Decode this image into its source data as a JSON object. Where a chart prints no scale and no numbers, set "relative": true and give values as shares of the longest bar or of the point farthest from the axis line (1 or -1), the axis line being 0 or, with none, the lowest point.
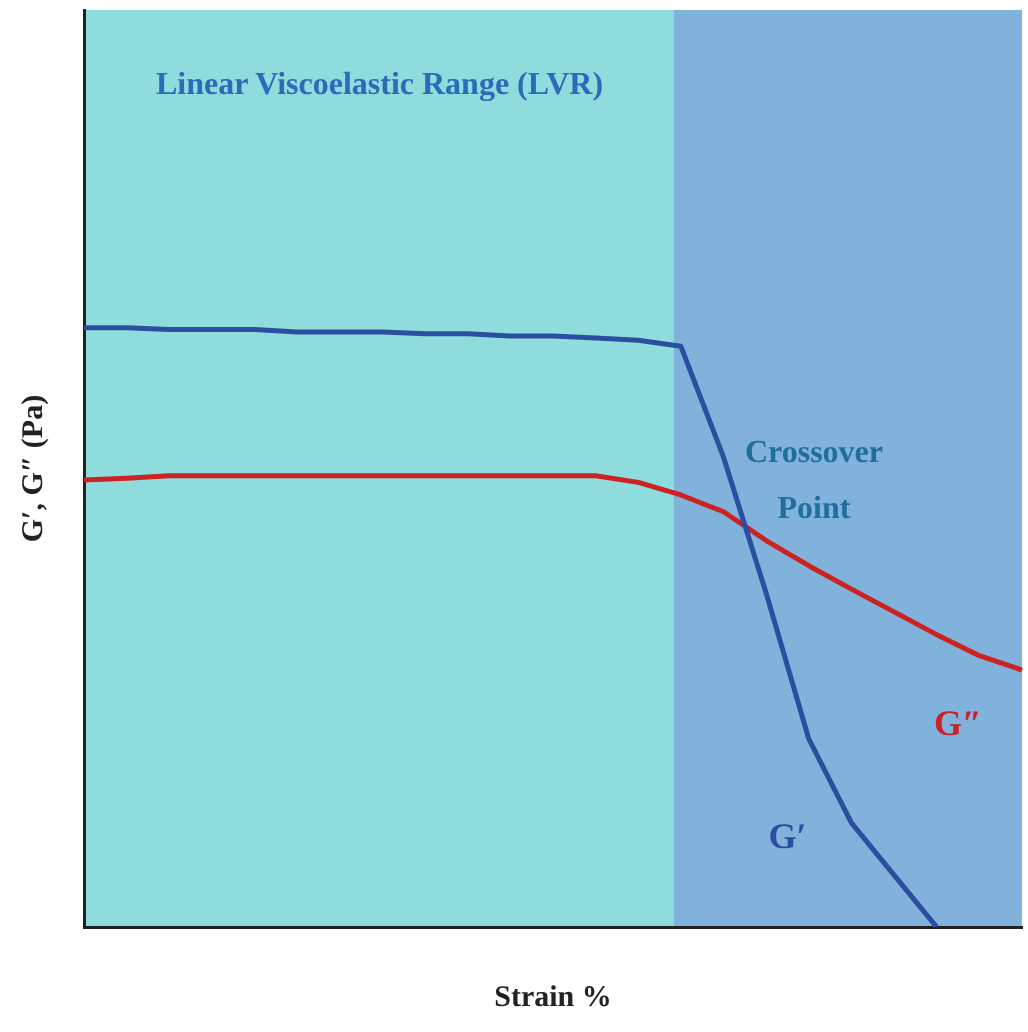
{
  "chart_data": {
    "type": "line",
    "relative": true,
    "xlabel": "Strain %",
    "ylabel": "G′, G″ (Pa)",
    "grid": false,
    "legend": false,
    "marker": "none",
    "categories": [
      null,
      null,
      null,
      null,
      null,
      null,
      null,
      null,
      null,
      null,
      null,
      null,
      null,
      null,
      null,
      null,
      null,
      null,
      null,
      null,
      null,
      null,
      null
    ],
    "series": [
      {
        "name": "G′",
        "color": "#2a4f9e",
        "values": [
          1,
          1,
          0.997,
          0.997,
          0.997,
          0.993,
          0.993,
          0.993,
          0.99,
          0.99,
          0.986,
          0.986,
          0.983,
          0.979,
          0.969,
          0.784,
          0.557,
          0.314,
          0.174,
          0.087,
          0,
          null,
          null
        ]
      },
      {
        "name": "G″",
        "color": "#cc2222",
        "values": [
          0.746,
          0.749,
          0.753,
          0.753,
          0.753,
          0.753,
          0.753,
          0.753,
          0.753,
          0.753,
          0.753,
          0.753,
          0.753,
          0.742,
          0.721,
          0.693,
          0.645,
          0.603,
          0.564,
          0.526,
          0.488,
          0.453,
          0.429
        ]
      }
    ],
    "annotations": [
      "Linear Viscoelastic Range (LVR)",
      "Crossover Point"
    ]
  }
}
